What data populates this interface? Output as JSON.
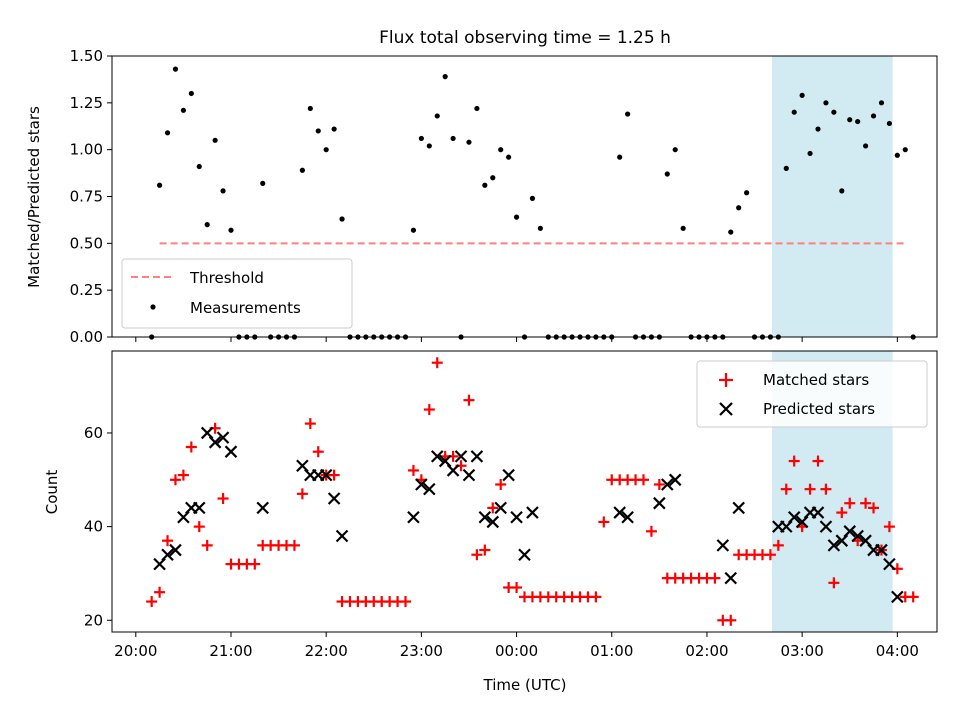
{
  "title": "Flux total observing time = 1.25 h",
  "colors": {
    "threshold": "#ff7f7f",
    "matched": "#ff0000",
    "predicted": "#000000",
    "highlight": "#add8e6"
  },
  "chart_data": [
    {
      "type": "scatter",
      "ylabel": "Matched/Predicted stars",
      "ylim": [
        0,
        1.5
      ],
      "yticks": [
        "0.00",
        "0.25",
        "0.50",
        "0.75",
        "1.00",
        "1.25",
        "1.50"
      ],
      "highlight_span": [
        "02:41",
        "03:57"
      ],
      "legend": {
        "position": "lower-left",
        "entries": [
          "Threshold",
          "Measurements"
        ]
      },
      "threshold": {
        "name": "Threshold",
        "value": 0.5,
        "x_range": [
          "20:15",
          "04:05"
        ],
        "style": "dashed"
      },
      "series": [
        {
          "name": "Measurements",
          "points": [
            [
              "20:10",
              0.0
            ],
            [
              "20:15",
              0.81
            ],
            [
              "20:20",
              1.09
            ],
            [
              "20:25",
              1.43
            ],
            [
              "20:30",
              1.21
            ],
            [
              "20:35",
              1.3
            ],
            [
              "20:40",
              0.91
            ],
            [
              "20:45",
              0.6
            ],
            [
              "20:50",
              1.05
            ],
            [
              "20:55",
              0.78
            ],
            [
              "21:00",
              0.57
            ],
            [
              "21:05",
              0.0
            ],
            [
              "21:10",
              0.0
            ],
            [
              "21:15",
              0.0
            ],
            [
              "21:20",
              0.82
            ],
            [
              "21:25",
              0.0
            ],
            [
              "21:30",
              0.0
            ],
            [
              "21:35",
              0.0
            ],
            [
              "21:40",
              0.0
            ],
            [
              "21:45",
              0.89
            ],
            [
              "21:50",
              1.22
            ],
            [
              "21:55",
              1.1
            ],
            [
              "22:00",
              1.0
            ],
            [
              "22:05",
              1.11
            ],
            [
              "22:10",
              0.63
            ],
            [
              "22:15",
              0.0
            ],
            [
              "22:20",
              0.0
            ],
            [
              "22:25",
              0.0
            ],
            [
              "22:30",
              0.0
            ],
            [
              "22:35",
              0.0
            ],
            [
              "22:40",
              0.0
            ],
            [
              "22:45",
              0.0
            ],
            [
              "22:50",
              0.0
            ],
            [
              "22:55",
              0.57
            ],
            [
              "23:00",
              1.06
            ],
            [
              "23:05",
              1.02
            ],
            [
              "23:10",
              1.18
            ],
            [
              "23:15",
              1.39
            ],
            [
              "23:20",
              1.06
            ],
            [
              "23:25",
              0.0
            ],
            [
              "23:30",
              1.04
            ],
            [
              "23:35",
              1.22
            ],
            [
              "23:40",
              0.81
            ],
            [
              "23:45",
              0.85
            ],
            [
              "23:50",
              1.0
            ],
            [
              "23:55",
              0.96
            ],
            [
              "00:00",
              0.64
            ],
            [
              "00:05",
              0.0
            ],
            [
              "00:10",
              0.74
            ],
            [
              "00:15",
              0.58
            ],
            [
              "00:20",
              0.0
            ],
            [
              "00:25",
              0.0
            ],
            [
              "00:30",
              0.0
            ],
            [
              "00:35",
              0.0
            ],
            [
              "00:40",
              0.0
            ],
            [
              "00:45",
              0.0
            ],
            [
              "00:50",
              0.0
            ],
            [
              "00:55",
              0.0
            ],
            [
              "01:00",
              0.0
            ],
            [
              "01:05",
              0.96
            ],
            [
              "01:10",
              1.19
            ],
            [
              "01:15",
              0.0
            ],
            [
              "01:20",
              0.0
            ],
            [
              "01:25",
              0.0
            ],
            [
              "01:30",
              0.0
            ],
            [
              "01:35",
              0.87
            ],
            [
              "01:40",
              1.0
            ],
            [
              "01:45",
              0.58
            ],
            [
              "01:50",
              0.0
            ],
            [
              "01:55",
              0.0
            ],
            [
              "02:00",
              0.0
            ],
            [
              "02:05",
              0.0
            ],
            [
              "02:10",
              0.0
            ],
            [
              "02:15",
              0.56
            ],
            [
              "02:20",
              0.69
            ],
            [
              "02:25",
              0.77
            ],
            [
              "02:30",
              0.0
            ],
            [
              "02:35",
              0.0
            ],
            [
              "02:40",
              0.0
            ],
            [
              "02:45",
              0.0
            ],
            [
              "02:50",
              0.9
            ],
            [
              "02:55",
              1.2
            ],
            [
              "03:00",
              1.29
            ],
            [
              "03:05",
              0.98
            ],
            [
              "03:10",
              1.11
            ],
            [
              "03:15",
              1.25
            ],
            [
              "03:20",
              1.2
            ],
            [
              "03:25",
              0.78
            ],
            [
              "03:30",
              1.16
            ],
            [
              "03:35",
              1.15
            ],
            [
              "03:40",
              1.02
            ],
            [
              "03:45",
              1.18
            ],
            [
              "03:50",
              1.25
            ],
            [
              "03:55",
              1.14
            ],
            [
              "04:00",
              0.97
            ],
            [
              "04:05",
              1.0
            ],
            [
              "04:10",
              0.0
            ]
          ]
        }
      ]
    },
    {
      "type": "scatter",
      "ylabel": "Count",
      "xlabel": "Time (UTC)",
      "ylim": [
        17.5,
        77.5
      ],
      "yticks": [
        "20",
        "40",
        "60"
      ],
      "xticks": [
        "20:00",
        "21:00",
        "22:00",
        "23:00",
        "00:00",
        "01:00",
        "02:00",
        "03:00",
        "04:00"
      ],
      "highlight_span": [
        "02:41",
        "03:57"
      ],
      "legend": {
        "position": "upper-right",
        "entries": [
          "Matched stars",
          "Predicted stars"
        ]
      },
      "series": [
        {
          "name": "Matched stars",
          "marker": "+",
          "points": [
            [
              "20:10",
              24
            ],
            [
              "20:15",
              26
            ],
            [
              "20:20",
              37
            ],
            [
              "20:25",
              50
            ],
            [
              "20:30",
              51
            ],
            [
              "20:35",
              57
            ],
            [
              "20:40",
              40
            ],
            [
              "20:45",
              36
            ],
            [
              "20:50",
              61
            ],
            [
              "20:55",
              46
            ],
            [
              "21:00",
              32
            ],
            [
              "21:05",
              32
            ],
            [
              "21:10",
              32
            ],
            [
              "21:15",
              32
            ],
            [
              "21:20",
              36
            ],
            [
              "21:25",
              36
            ],
            [
              "21:30",
              36
            ],
            [
              "21:35",
              36
            ],
            [
              "21:40",
              36
            ],
            [
              "21:45",
              47
            ],
            [
              "21:50",
              62
            ],
            [
              "21:55",
              56
            ],
            [
              "22:00",
              51
            ],
            [
              "22:05",
              51
            ],
            [
              "22:10",
              24
            ],
            [
              "22:15",
              24
            ],
            [
              "22:20",
              24
            ],
            [
              "22:25",
              24
            ],
            [
              "22:30",
              24
            ],
            [
              "22:35",
              24
            ],
            [
              "22:40",
              24
            ],
            [
              "22:45",
              24
            ],
            [
              "22:50",
              24
            ],
            [
              "22:55",
              52
            ],
            [
              "23:00",
              50
            ],
            [
              "23:05",
              65
            ],
            [
              "23:10",
              75
            ],
            [
              "23:15",
              55
            ],
            [
              "23:20",
              55
            ],
            [
              "23:25",
              53
            ],
            [
              "23:30",
              67
            ],
            [
              "23:35",
              34
            ],
            [
              "23:40",
              35
            ],
            [
              "23:45",
              44
            ],
            [
              "23:50",
              49
            ],
            [
              "23:55",
              27
            ],
            [
              "00:00",
              27
            ],
            [
              "00:05",
              25
            ],
            [
              "00:10",
              25
            ],
            [
              "00:15",
              25
            ],
            [
              "00:20",
              25
            ],
            [
              "00:25",
              25
            ],
            [
              "00:30",
              25
            ],
            [
              "00:35",
              25
            ],
            [
              "00:40",
              25
            ],
            [
              "00:45",
              25
            ],
            [
              "00:50",
              25
            ],
            [
              "00:55",
              41
            ],
            [
              "01:00",
              50
            ],
            [
              "01:05",
              50
            ],
            [
              "01:10",
              50
            ],
            [
              "01:15",
              50
            ],
            [
              "01:20",
              50
            ],
            [
              "01:25",
              39
            ],
            [
              "01:30",
              49
            ],
            [
              "01:35",
              29
            ],
            [
              "01:40",
              29
            ],
            [
              "01:45",
              29
            ],
            [
              "01:50",
              29
            ],
            [
              "01:55",
              29
            ],
            [
              "02:00",
              29
            ],
            [
              "02:05",
              29
            ],
            [
              "02:10",
              20
            ],
            [
              "02:15",
              20
            ],
            [
              "02:20",
              34
            ],
            [
              "02:25",
              34
            ],
            [
              "02:30",
              34
            ],
            [
              "02:35",
              34
            ],
            [
              "02:40",
              34
            ],
            [
              "02:45",
              36
            ],
            [
              "02:50",
              48
            ],
            [
              "02:55",
              54
            ],
            [
              "03:00",
              40
            ],
            [
              "03:05",
              48
            ],
            [
              "03:10",
              54
            ],
            [
              "03:15",
              48
            ],
            [
              "03:20",
              28
            ],
            [
              "03:25",
              43
            ],
            [
              "03:30",
              45
            ],
            [
              "03:35",
              37
            ],
            [
              "03:40",
              45
            ],
            [
              "03:45",
              44
            ],
            [
              "03:50",
              35
            ],
            [
              "03:55",
              40
            ],
            [
              "04:00",
              31
            ],
            [
              "04:05",
              25
            ],
            [
              "04:10",
              25
            ]
          ]
        },
        {
          "name": "Predicted stars",
          "marker": "x",
          "points": [
            [
              "20:15",
              32
            ],
            [
              "20:20",
              34
            ],
            [
              "20:25",
              35
            ],
            [
              "20:30",
              42
            ],
            [
              "20:35",
              44
            ],
            [
              "20:40",
              44
            ],
            [
              "20:45",
              60
            ],
            [
              "20:50",
              58
            ],
            [
              "20:55",
              59
            ],
            [
              "21:00",
              56
            ],
            [
              "21:20",
              44
            ],
            [
              "21:45",
              53
            ],
            [
              "21:50",
              51
            ],
            [
              "21:55",
              51
            ],
            [
              "22:00",
              51
            ],
            [
              "22:05",
              46
            ],
            [
              "22:10",
              38
            ],
            [
              "22:55",
              42
            ],
            [
              "23:00",
              49
            ],
            [
              "23:05",
              48
            ],
            [
              "23:10",
              55
            ],
            [
              "23:15",
              54
            ],
            [
              "23:20",
              52
            ],
            [
              "23:25",
              55
            ],
            [
              "23:30",
              51
            ],
            [
              "23:35",
              55
            ],
            [
              "23:40",
              42
            ],
            [
              "23:45",
              41
            ],
            [
              "23:50",
              44
            ],
            [
              "23:55",
              51
            ],
            [
              "00:00",
              42
            ],
            [
              "00:05",
              34
            ],
            [
              "00:10",
              43
            ],
            [
              "01:05",
              43
            ],
            [
              "01:10",
              42
            ],
            [
              "01:30",
              45
            ],
            [
              "01:35",
              49
            ],
            [
              "01:40",
              50
            ],
            [
              "02:10",
              36
            ],
            [
              "02:15",
              29
            ],
            [
              "02:20",
              44
            ],
            [
              "02:45",
              40
            ],
            [
              "02:50",
              40
            ],
            [
              "02:55",
              42
            ],
            [
              "03:00",
              41
            ],
            [
              "03:05",
              43
            ],
            [
              "03:10",
              43
            ],
            [
              "03:15",
              40
            ],
            [
              "03:20",
              36
            ],
            [
              "03:25",
              37
            ],
            [
              "03:30",
              39
            ],
            [
              "03:35",
              38
            ],
            [
              "03:40",
              37
            ],
            [
              "03:45",
              35
            ],
            [
              "03:50",
              35
            ],
            [
              "03:55",
              32
            ],
            [
              "04:00",
              25
            ]
          ]
        }
      ]
    }
  ]
}
